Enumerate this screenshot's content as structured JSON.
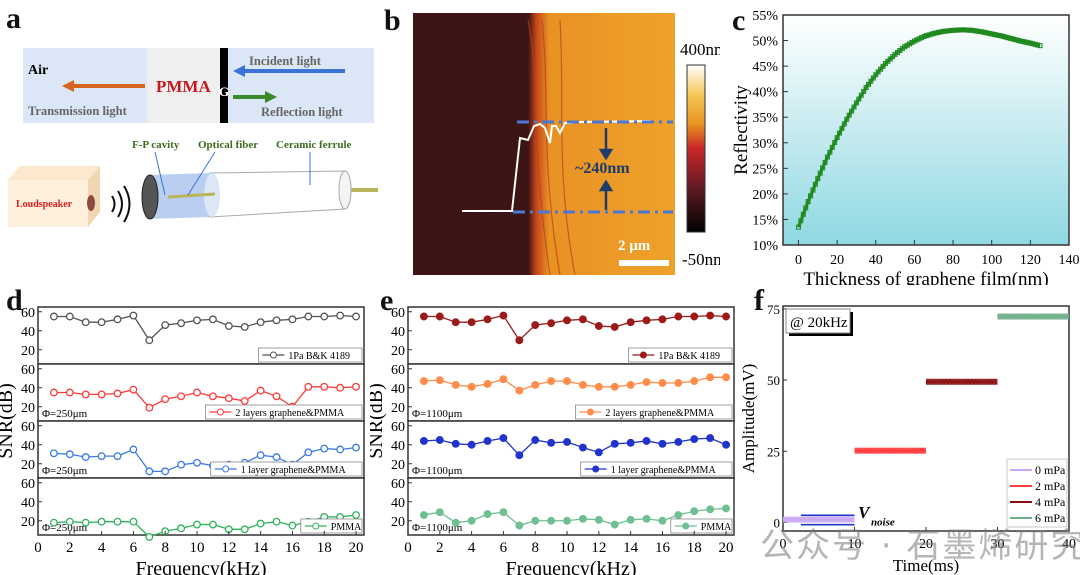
{
  "panels": {
    "a": {
      "label": "a",
      "air": "Air",
      "pmma": "PMMA",
      "g": "G",
      "incident": "Incident light",
      "transmission": "Transmission light",
      "reflection": "Reflection light",
      "fp_cavity": "F-P cavity",
      "optical_fiber": "Optical fiber",
      "ceramic_ferrule": "Ceramic ferrule",
      "loudspeaker": "Loudspeaker"
    },
    "b": {
      "label": "b",
      "colorbar_max": "400nm",
      "colorbar_min": "-50nm",
      "step_height": "~240nm",
      "scale_bar": "2 μm"
    },
    "c": {
      "label": "c"
    },
    "d": {
      "label": "d"
    },
    "e": {
      "label": "e"
    },
    "f": {
      "label": "f"
    }
  },
  "watermark": "公众号 · 石墨烯研究",
  "chart_data": [
    {
      "id": "c",
      "type": "scatter",
      "title": "",
      "xlabel": "Thickness of graphene film(nm)",
      "ylabel": "Reflectivity",
      "xlim": [
        -8,
        140
      ],
      "ylim": [
        10,
        55
      ],
      "xticks": [
        0,
        20,
        40,
        60,
        80,
        100,
        120,
        140
      ],
      "yticks": [
        10,
        15,
        20,
        25,
        30,
        35,
        40,
        45,
        50,
        55
      ],
      "ytick_suffix": "%",
      "series": [
        {
          "name": "reflectivity",
          "color": "#1f8a1f",
          "x": [
            0,
            5,
            10,
            15,
            20,
            25,
            30,
            35,
            40,
            45,
            50,
            55,
            60,
            65,
            70,
            75,
            80,
            85,
            90,
            95,
            100,
            105,
            110,
            115,
            120,
            125
          ],
          "y": [
            13.5,
            18.5,
            23.0,
            27.2,
            31.0,
            34.6,
            37.8,
            40.8,
            43.3,
            45.5,
            47.3,
            48.8,
            49.9,
            50.8,
            51.4,
            51.8,
            52.0,
            52.1,
            52.0,
            51.7,
            51.3,
            50.9,
            50.4,
            49.9,
            49.5,
            49.0
          ]
        }
      ]
    },
    {
      "id": "d",
      "type": "line",
      "xlabel": "Frequency(kHz)",
      "ylabel": "SNR(dB)",
      "xlim": [
        0,
        20.5
      ],
      "ylim": [
        5,
        65
      ],
      "xticks": [
        0,
        2,
        4,
        6,
        8,
        10,
        12,
        14,
        16,
        18,
        20
      ],
      "yticks": [
        20,
        40,
        60
      ],
      "x": [
        1,
        2,
        3,
        4,
        5,
        6,
        7,
        8,
        9,
        10,
        11,
        12,
        13,
        14,
        15,
        16,
        17,
        18,
        19,
        20
      ],
      "subplots": [
        {
          "name": "1Pa B&K 4189",
          "color": "#555555",
          "annotation": "",
          "values": [
            55,
            55,
            49,
            49,
            52,
            56,
            30,
            46,
            48,
            51,
            52,
            45,
            44,
            49,
            51,
            52,
            55,
            55,
            56,
            55
          ]
        },
        {
          "name": "2 layers graphene&PMMA",
          "color": "#ff3b3b",
          "annotation": "Φ=250μm",
          "values": [
            35,
            35,
            33,
            33,
            34,
            38,
            19,
            28,
            31,
            35,
            31,
            29,
            26,
            37,
            31,
            20,
            41,
            41,
            40,
            41
          ]
        },
        {
          "name": "1 layer graphene&PMMA",
          "color": "#3a7be8",
          "annotation": "Φ=250μm",
          "values": [
            31,
            30,
            27,
            28,
            28,
            35,
            12,
            12,
            19,
            21,
            18,
            19,
            21,
            29,
            27,
            19,
            32,
            36,
            35,
            37
          ]
        },
        {
          "name": "PMMA",
          "color": "#2fb35a",
          "annotation": "Φ=250μm",
          "values": [
            18,
            19,
            18,
            19,
            19,
            19,
            3,
            9,
            12,
            16,
            16,
            11,
            11,
            17,
            19,
            15,
            19,
            24,
            24,
            26
          ]
        }
      ]
    },
    {
      "id": "e",
      "type": "line",
      "xlabel": "Frequency(kHz)",
      "ylabel": "SNR(dB)",
      "xlim": [
        0,
        20.5
      ],
      "ylim": [
        5,
        65
      ],
      "xticks": [
        0,
        2,
        4,
        6,
        8,
        10,
        12,
        14,
        16,
        18,
        20
      ],
      "yticks": [
        20,
        40,
        60
      ],
      "x": [
        1,
        2,
        3,
        4,
        5,
        6,
        7,
        8,
        9,
        10,
        11,
        12,
        13,
        14,
        15,
        16,
        17,
        18,
        19,
        20
      ],
      "subplots": [
        {
          "name": "1Pa B&K 4189",
          "color": "#9b1b1b",
          "annotation": "",
          "values": [
            55,
            55,
            49,
            49,
            52,
            56,
            30,
            46,
            48,
            51,
            52,
            45,
            44,
            49,
            51,
            52,
            55,
            55,
            56,
            55
          ]
        },
        {
          "name": "2 layers graphene&PMMA",
          "color": "#ff8c4a",
          "annotation": "Φ=1100μm",
          "values": [
            47,
            48,
            43,
            41,
            44,
            49,
            37,
            43,
            47,
            47,
            43,
            41,
            41,
            43,
            46,
            45,
            45,
            47,
            51,
            51
          ]
        },
        {
          "name": "1 layer graphene&PMMA",
          "color": "#2233cc",
          "annotation": "Φ=1100μm",
          "values": [
            44,
            45,
            41,
            40,
            44,
            47,
            29,
            45,
            42,
            43,
            37,
            32,
            41,
            42,
            44,
            41,
            43,
            46,
            47,
            40
          ]
        },
        {
          "name": "PMMA",
          "color": "#6fbf93",
          "annotation": "Φ=1100μm",
          "values": [
            26,
            29,
            18,
            20,
            27,
            29,
            15,
            20,
            20,
            20,
            22,
            21,
            16,
            21,
            22,
            20,
            26,
            30,
            32,
            33
          ]
        }
      ]
    },
    {
      "id": "f",
      "type": "line",
      "xlabel": "Time(ms)",
      "ylabel": "Amplitude(mV)",
      "xlim": [
        0,
        40
      ],
      "ylim": [
        -3,
        76
      ],
      "xticks": [
        0,
        10,
        20,
        30,
        40
      ],
      "yticks": [
        0,
        25,
        50,
        75
      ],
      "annotation": "@ 20kHz",
      "noise_label": "V",
      "noise_sub": "noise",
      "series": [
        {
          "name": "0 mPa",
          "color": "#c9a8f5",
          "x_range": [
            0,
            10
          ],
          "level": 1.0
        },
        {
          "name": "2 mPa",
          "color": "#ff3b3b",
          "x_range": [
            10,
            20
          ],
          "level": 25.2
        },
        {
          "name": "4 mPa",
          "color": "#8b0f0f",
          "x_range": [
            20,
            30
          ],
          "level": 49.4
        },
        {
          "name": "6 mPa",
          "color": "#6fae8a",
          "x_range": [
            30,
            40
          ],
          "level": 72.3
        }
      ],
      "noise_band": {
        "x_range": [
          2.5,
          10
        ],
        "upper": 2.5,
        "lower": -0.8,
        "color": "#2233cc"
      }
    }
  ]
}
